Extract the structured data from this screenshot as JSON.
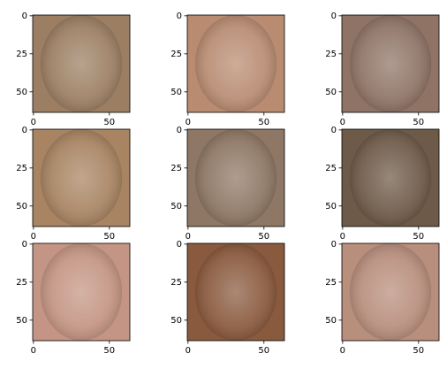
{
  "chart_data": [
    {
      "type": "image",
      "color": "#9c7f63",
      "xlim": [
        -0.5,
        63.5
      ],
      "ylim": [
        63.5,
        -0.5
      ],
      "xticks": [
        0,
        50
      ],
      "yticks": [
        0,
        25,
        50
      ]
    },
    {
      "type": "image",
      "color": "#b98c72",
      "xlim": [
        -0.5,
        63.5
      ],
      "ylim": [
        63.5,
        -0.5
      ],
      "xticks": [
        0,
        50
      ],
      "yticks": [
        0,
        25,
        50
      ]
    },
    {
      "type": "image",
      "color": "#8f7466",
      "xlim": [
        -0.5,
        63.5
      ],
      "ylim": [
        63.5,
        -0.5
      ],
      "xticks": [
        0,
        50
      ],
      "yticks": [
        0,
        25,
        50
      ]
    },
    {
      "type": "image",
      "color": "#a88462",
      "xlim": [
        -0.5,
        63.5
      ],
      "ylim": [
        63.5,
        -0.5
      ],
      "xticks": [
        0,
        50
      ],
      "yticks": [
        0,
        25,
        50
      ]
    },
    {
      "type": "image",
      "color": "#8e7764",
      "xlim": [
        -0.5,
        63.5
      ],
      "ylim": [
        63.5,
        -0.5
      ],
      "xticks": [
        0,
        50
      ],
      "yticks": [
        0,
        25,
        50
      ]
    },
    {
      "type": "image",
      "color": "#6e5a48",
      "xlim": [
        -0.5,
        63.5
      ],
      "ylim": [
        63.5,
        -0.5
      ],
      "xticks": [
        0,
        50
      ],
      "yticks": [
        0,
        25,
        50
      ]
    },
    {
      "type": "image",
      "color": "#c49584",
      "xlim": [
        -0.5,
        63.5
      ],
      "ylim": [
        63.5,
        -0.5
      ],
      "xticks": [
        0,
        50
      ],
      "yticks": [
        0,
        25,
        50
      ]
    },
    {
      "type": "image",
      "color": "#8a5a3e",
      "xlim": [
        -0.5,
        63.5
      ],
      "ylim": [
        63.5,
        -0.5
      ],
      "xticks": [
        0,
        50
      ],
      "yticks": [
        0,
        25,
        50
      ]
    },
    {
      "type": "image",
      "color": "#b88e7c",
      "xlim": [
        -0.5,
        63.5
      ],
      "ylim": [
        63.5,
        -0.5
      ],
      "xticks": [
        0,
        50
      ],
      "yticks": [
        0,
        25,
        50
      ]
    }
  ]
}
